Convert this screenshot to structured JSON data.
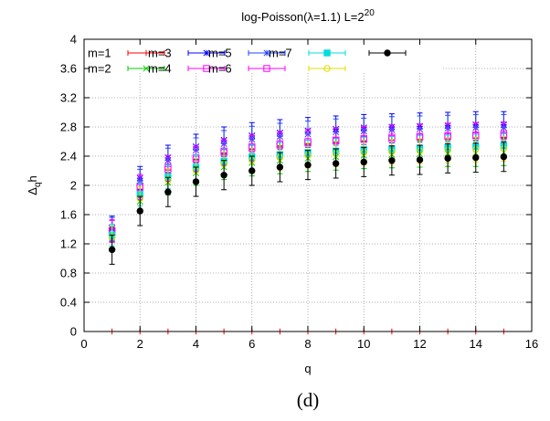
{
  "chart_data": {
    "type": "scatter",
    "title": "log-Poisson(λ=1.1) L=2",
    "title_sup": "20",
    "xlabel": "q",
    "ylabel": "Δ",
    "ylabel_sub": "q",
    "ylabel_tail": "h",
    "caption": "(d)",
    "xlim": [
      0,
      16
    ],
    "ylim": [
      0,
      4
    ],
    "xticks": [
      0,
      2,
      4,
      6,
      8,
      10,
      12,
      14,
      16
    ],
    "yticks": [
      0,
      0.4,
      0.8,
      1.2,
      1.6,
      2,
      2.4,
      2.8,
      3.2,
      3.6,
      4
    ],
    "grid": true,
    "legend_position": "top-left",
    "x": [
      1,
      2,
      3,
      4,
      5,
      6,
      7,
      8,
      9,
      10,
      11,
      12,
      13,
      14,
      15
    ],
    "series": [
      {
        "name": "m=1",
        "color": "#ff0000",
        "marker": "plus",
        "values": [
          0,
          0,
          0,
          0,
          0,
          0,
          0,
          0,
          0,
          0,
          0,
          0,
          0,
          0,
          0
        ],
        "errors": [
          0,
          0,
          0,
          0,
          0,
          0,
          0,
          0,
          0,
          0,
          0,
          0,
          0,
          0,
          0
        ]
      },
      {
        "name": "m=2",
        "color": "#00cc00",
        "marker": "cross",
        "values": [
          1.26,
          1.78,
          2.04,
          2.17,
          2.25,
          2.31,
          2.34,
          2.37,
          2.39,
          2.41,
          2.42,
          2.43,
          2.44,
          2.44,
          2.45
        ],
        "errors": [
          0.15,
          0.16,
          0.17,
          0.17,
          0.17,
          0.18,
          0.18,
          0.18,
          0.18,
          0.18,
          0.18,
          0.18,
          0.18,
          0.18,
          0.18
        ]
      },
      {
        "name": "m=3",
        "color": "#0000ff",
        "marker": "star",
        "values": [
          1.42,
          2.1,
          2.38,
          2.53,
          2.62,
          2.68,
          2.72,
          2.75,
          2.77,
          2.79,
          2.8,
          2.81,
          2.82,
          2.83,
          2.83
        ],
        "errors": [
          0.16,
          0.16,
          0.17,
          0.17,
          0.18,
          0.18,
          0.18,
          0.18,
          0.18,
          0.18,
          0.18,
          0.18,
          0.18,
          0.18,
          0.18
        ]
      },
      {
        "name": "m=4",
        "color": "#ff00ff",
        "marker": "square-open",
        "values": [
          1.38,
          1.99,
          2.25,
          2.38,
          2.47,
          2.53,
          2.57,
          2.6,
          2.62,
          2.64,
          2.66,
          2.67,
          2.68,
          2.69,
          2.7
        ],
        "errors": [
          0.15,
          0.16,
          0.16,
          0.17,
          0.17,
          0.17,
          0.17,
          0.17,
          0.17,
          0.17,
          0.17,
          0.17,
          0.17,
          0.17,
          0.17
        ]
      },
      {
        "name": "m=5",
        "color": "#2244ff",
        "marker": "star",
        "values": [
          1.4,
          2.06,
          2.34,
          2.48,
          2.57,
          2.63,
          2.67,
          2.7,
          2.73,
          2.74,
          2.76,
          2.77,
          2.78,
          2.79,
          2.79
        ],
        "errors": [
          0.16,
          0.16,
          0.17,
          0.17,
          0.18,
          0.18,
          0.18,
          0.18,
          0.18,
          0.18,
          0.18,
          0.18,
          0.18,
          0.18,
          0.18
        ]
      },
      {
        "name": "m=6",
        "color": "#ff00ff",
        "marker": "square-open",
        "values": [
          1.37,
          1.97,
          2.22,
          2.36,
          2.45,
          2.51,
          2.55,
          2.58,
          2.61,
          2.63,
          2.64,
          2.66,
          2.67,
          2.68,
          2.68
        ],
        "errors": [
          0.15,
          0.16,
          0.16,
          0.17,
          0.17,
          0.17,
          0.17,
          0.17,
          0.17,
          0.17,
          0.17,
          0.17,
          0.17,
          0.17,
          0.17
        ]
      },
      {
        "name": "m=7",
        "color": "#00dddd",
        "marker": "square-filled",
        "values": [
          1.32,
          1.88,
          2.12,
          2.25,
          2.33,
          2.39,
          2.42,
          2.45,
          2.47,
          2.49,
          2.5,
          2.51,
          2.52,
          2.53,
          2.54
        ],
        "errors": [
          0.15,
          0.16,
          0.16,
          0.17,
          0.17,
          0.17,
          0.17,
          0.17,
          0.17,
          0.17,
          0.17,
          0.17,
          0.17,
          0.17,
          0.17
        ]
      },
      {
        "name": "",
        "color": "#dddd00",
        "marker": "circle-open",
        "values": [
          1.29,
          1.82,
          2.07,
          2.2,
          2.29,
          2.34,
          2.38,
          2.41,
          2.43,
          2.45,
          2.46,
          2.47,
          2.48,
          2.49,
          2.5
        ],
        "errors": [
          0.15,
          0.16,
          0.16,
          0.17,
          0.17,
          0.17,
          0.17,
          0.17,
          0.17,
          0.17,
          0.17,
          0.17,
          0.17,
          0.17,
          0.17
        ]
      },
      {
        "name": "",
        "color": "#000000",
        "marker": "circle-filled",
        "values": [
          1.12,
          1.65,
          1.91,
          2.05,
          2.14,
          2.2,
          2.25,
          2.28,
          2.3,
          2.32,
          2.34,
          2.35,
          2.37,
          2.38,
          2.39
        ],
        "errors": [
          0.2,
          0.2,
          0.2,
          0.2,
          0.2,
          0.2,
          0.2,
          0.2,
          0.2,
          0.2,
          0.2,
          0.2,
          0.2,
          0.2,
          0.2
        ]
      }
    ]
  }
}
